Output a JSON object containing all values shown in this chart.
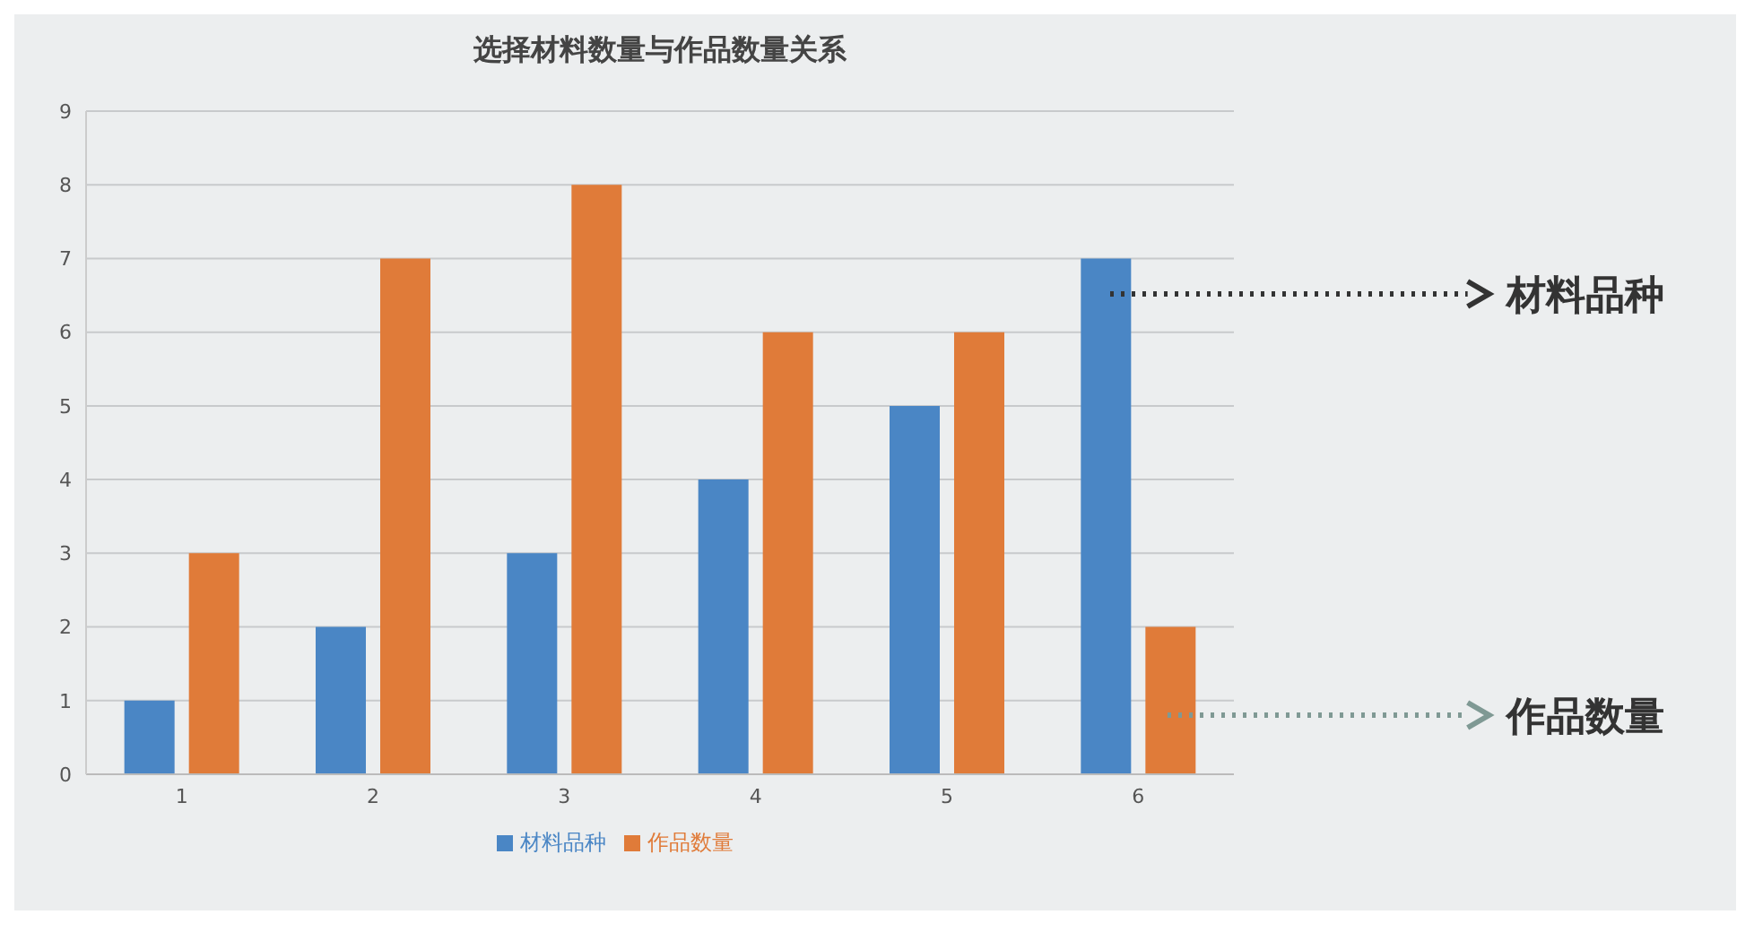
{
  "chart_data": {
    "type": "bar",
    "title": "选择材料数量与作品数量关系",
    "categories": [
      "1",
      "2",
      "3",
      "4",
      "5",
      "6"
    ],
    "series": [
      {
        "name": "材料品种",
        "color": "#4a86c5",
        "values": [
          1,
          2,
          3,
          4,
          5,
          7
        ]
      },
      {
        "name": "作品数量",
        "color": "#e07b39",
        "values": [
          3,
          7,
          8,
          6,
          6,
          2
        ]
      }
    ],
    "ylim": [
      0,
      9
    ],
    "yticks": [
      0,
      1,
      2,
      3,
      4,
      5,
      6,
      7,
      8,
      9
    ],
    "grid": "y",
    "legend": "bottom",
    "annotations": [
      "材料品种",
      "作品数量"
    ]
  }
}
